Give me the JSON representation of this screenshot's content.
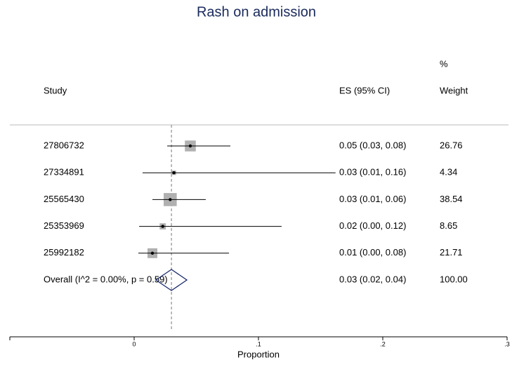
{
  "chart_data": {
    "type": "forest",
    "title": "Rash on admission",
    "x_label": "Proportion",
    "headers": {
      "study": "Study",
      "es": "ES (95% CI)",
      "weight_top": "%",
      "weight": "Weight"
    },
    "studies": [
      "27806732",
      "27334891",
      "25565430",
      "25353969",
      "25992182"
    ],
    "values": [
      0.0452,
      0.032,
      0.029,
      0.023,
      0.0147
    ],
    "ci_low": [
      0.0266,
      0.0068,
      0.0147,
      0.004,
      0.0034
    ],
    "ci_high": [
      0.0774,
      0.162,
      0.0576,
      0.1186,
      0.0763
    ],
    "es_labels": [
      "0.05 (0.03, 0.08)",
      "0.03 (0.01, 0.16)",
      "0.03 (0.01, 0.06)",
      "0.02 (0.00, 0.12)",
      "0.01 (0.00, 0.08)"
    ],
    "weights": [
      26.76,
      4.34,
      38.54,
      8.65,
      21.71
    ],
    "overall": {
      "label": "Overall  (I^2 = 0.00%, p = 0.59)",
      "es": 0.03,
      "lo": 0.0175,
      "hi": 0.0424,
      "es_label": "0.03 (0.02, 0.04)",
      "weight_label": "100.00"
    },
    "xlim": [
      -0.1,
      0.3
    ],
    "xticks": [
      0,
      {
        "value": 0.1,
        "label": ".1"
      },
      {
        "value": 0.2,
        "label": ".2"
      },
      {
        "value": 0.3,
        "label": ".3"
      }
    ],
    "box_color": "#b0b0b0",
    "diamond_color": "#1a2a6c"
  }
}
